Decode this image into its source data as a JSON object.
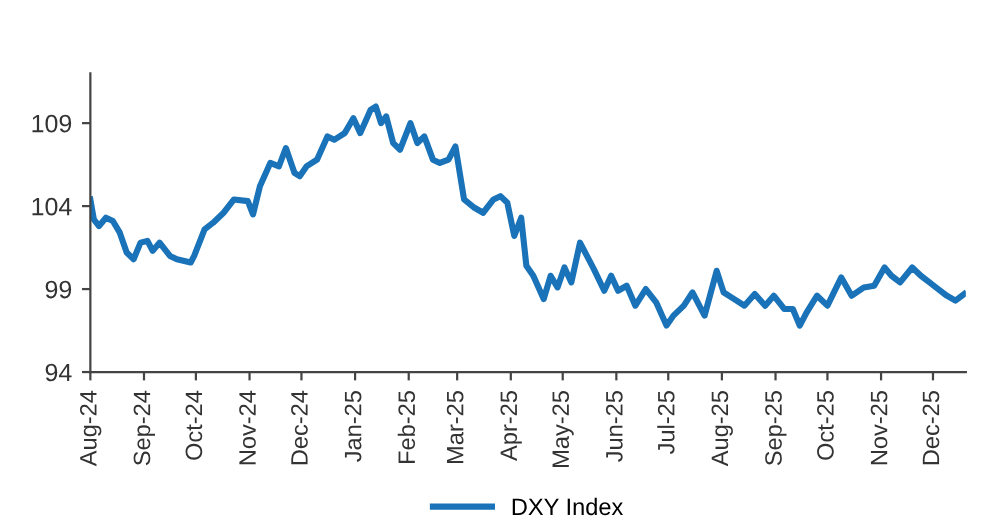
{
  "chart_data": {
    "type": "line",
    "x": [
      "2024-08-01",
      "2024-08-03",
      "2024-08-06",
      "2024-08-10",
      "2024-08-14",
      "2024-08-18",
      "2024-08-22",
      "2024-08-26",
      "2024-08-30",
      "2024-09-03",
      "2024-09-06",
      "2024-09-10",
      "2024-09-16",
      "2024-09-20",
      "2024-09-28",
      "2024-09-30",
      "2024-10-06",
      "2024-10-11",
      "2024-10-17",
      "2024-10-23",
      "2024-10-31",
      "2024-11-03",
      "2024-11-07",
      "2024-11-13",
      "2024-11-18",
      "2024-11-22",
      "2024-11-27",
      "2024-11-30",
      "2024-12-04",
      "2024-12-10",
      "2024-12-16",
      "2024-12-20",
      "2024-12-26",
      "2024-12-31",
      "2025-01-04",
      "2025-01-10",
      "2025-01-13",
      "2025-01-16",
      "2025-01-19",
      "2025-01-23",
      "2025-01-27",
      "2025-02-02",
      "2025-02-06",
      "2025-02-10",
      "2025-02-15",
      "2025-02-19",
      "2025-02-24",
      "2025-02-28",
      "2025-03-05",
      "2025-03-11",
      "2025-03-16",
      "2025-03-22",
      "2025-03-26",
      "2025-03-30",
      "2025-04-03",
      "2025-04-07",
      "2025-04-10",
      "2025-04-14",
      "2025-04-20",
      "2025-04-24",
      "2025-04-28",
      "2025-05-02",
      "2025-05-06",
      "2025-05-11",
      "2025-05-15",
      "2025-05-19",
      "2025-05-25",
      "2025-05-29",
      "2025-06-02",
      "2025-06-07",
      "2025-06-12",
      "2025-06-18",
      "2025-06-24",
      "2025-06-30",
      "2025-07-04",
      "2025-07-10",
      "2025-07-15",
      "2025-07-22",
      "2025-07-29",
      "2025-08-02",
      "2025-08-08",
      "2025-08-14",
      "2025-08-20",
      "2025-08-26",
      "2025-08-31",
      "2025-09-06",
      "2025-09-11",
      "2025-09-15",
      "2025-09-19",
      "2025-09-25",
      "2025-10-01",
      "2025-10-09",
      "2025-10-15",
      "2025-10-22",
      "2025-10-28",
      "2025-11-03",
      "2025-11-07",
      "2025-11-12",
      "2025-11-19",
      "2025-11-24",
      "2025-11-29",
      "2025-12-04",
      "2025-12-09",
      "2025-12-14",
      "2025-12-19"
    ],
    "series": [
      {
        "name": "DXY Index",
        "color": "#1a73b8",
        "values": [
          104.4,
          103.2,
          102.8,
          103.3,
          103.1,
          102.4,
          101.2,
          100.8,
          101.8,
          101.9,
          101.3,
          101.8,
          101.0,
          100.8,
          100.6,
          101.0,
          102.6,
          103.0,
          103.6,
          104.4,
          104.3,
          103.5,
          105.2,
          106.6,
          106.4,
          107.5,
          106.0,
          105.8,
          106.4,
          106.8,
          108.2,
          108.0,
          108.4,
          109.3,
          108.4,
          109.8,
          110.0,
          109.0,
          109.4,
          107.8,
          107.4,
          109.0,
          107.8,
          108.2,
          106.8,
          106.6,
          106.8,
          107.6,
          104.4,
          103.9,
          103.6,
          104.4,
          104.6,
          104.2,
          102.2,
          103.3,
          100.4,
          99.8,
          98.4,
          99.8,
          99.1,
          100.3,
          99.4,
          101.8,
          101.0,
          100.2,
          98.9,
          99.8,
          98.9,
          99.2,
          98.0,
          99.0,
          98.2,
          96.8,
          97.4,
          98.0,
          98.8,
          97.4,
          100.1,
          98.8,
          98.4,
          98.0,
          98.7,
          98.0,
          98.6,
          97.8,
          97.8,
          96.8,
          97.6,
          98.6,
          98.0,
          99.7,
          98.6,
          99.1,
          99.2,
          100.3,
          99.8,
          99.4,
          100.3,
          99.8,
          99.4,
          99.0,
          98.6,
          98.3,
          98.7
        ]
      }
    ],
    "xlim": [
      "2024-08-01",
      "2025-12-20"
    ],
    "xticks": [
      {
        "value": "2024-08-01",
        "label": "Aug-24"
      },
      {
        "value": "2024-09-01",
        "label": "Sep-24"
      },
      {
        "value": "2024-10-01",
        "label": "Oct-24"
      },
      {
        "value": "2024-11-01",
        "label": "Nov-24"
      },
      {
        "value": "2024-12-01",
        "label": "Dec-24"
      },
      {
        "value": "2025-01-01",
        "label": "Jan-25"
      },
      {
        "value": "2025-02-01",
        "label": "Feb-25"
      },
      {
        "value": "2025-03-01",
        "label": "Mar-25"
      },
      {
        "value": "2025-04-01",
        "label": "Apr-25"
      },
      {
        "value": "2025-05-01",
        "label": "May-25"
      },
      {
        "value": "2025-06-01",
        "label": "Jun-25"
      },
      {
        "value": "2025-07-01",
        "label": "Jul-25"
      },
      {
        "value": "2025-08-01",
        "label": "Aug-25"
      },
      {
        "value": "2025-09-01",
        "label": "Sep-25"
      },
      {
        "value": "2025-10-01",
        "label": "Oct-25"
      },
      {
        "value": "2025-11-01",
        "label": "Nov-25"
      },
      {
        "value": "2025-12-01",
        "label": "Dec-25"
      }
    ],
    "ylim": [
      94,
      112
    ],
    "yticks": [
      94,
      99,
      104,
      109
    ],
    "grid": false,
    "legend": "bottom",
    "marker": "none",
    "line_style": "solid"
  }
}
